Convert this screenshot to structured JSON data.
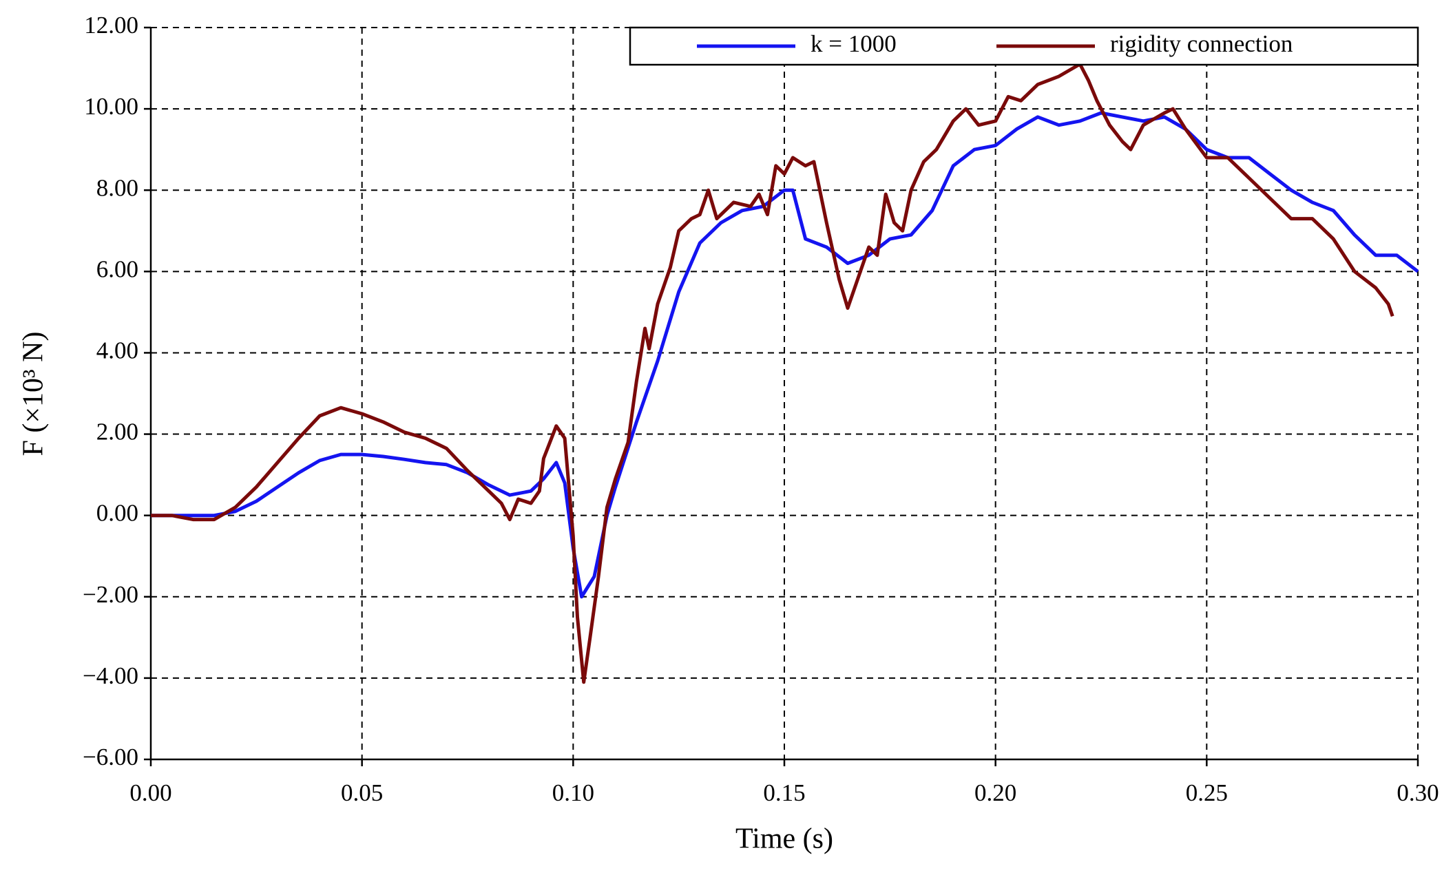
{
  "chart_data": {
    "type": "line",
    "x_label": "Time (s)",
    "y_label": "F (×10³ N)",
    "xlim": [
      0,
      0.3
    ],
    "ylim": [
      -6,
      12
    ],
    "xticks": [
      {
        "value": 0,
        "label": "0.00"
      },
      {
        "value": 0.05,
        "label": "0.05"
      },
      {
        "value": 0.1,
        "label": "0.10"
      },
      {
        "value": 0.15,
        "label": "0.15"
      },
      {
        "value": 0.2,
        "label": "0.20"
      },
      {
        "value": 0.25,
        "label": "0.25"
      },
      {
        "value": 0.3,
        "label": "0.30"
      }
    ],
    "yticks": [
      {
        "value": -6,
        "label": "−6.00"
      },
      {
        "value": -4,
        "label": "−4.00"
      },
      {
        "value": -2,
        "label": "−2.00"
      },
      {
        "value": 0,
        "label": "0.00"
      },
      {
        "value": 2,
        "label": "2.00"
      },
      {
        "value": 4,
        "label": "4.00"
      },
      {
        "value": 6,
        "label": "6.00"
      },
      {
        "value": 8,
        "label": "8.00"
      },
      {
        "value": 10,
        "label": "10.00"
      },
      {
        "value": 12,
        "label": "12.00"
      }
    ],
    "grid": true,
    "legend": "top-right",
    "series": [
      {
        "name": "k = 1000",
        "color": "#1414f0",
        "x": [
          0,
          0.005,
          0.01,
          0.015,
          0.02,
          0.025,
          0.03,
          0.035,
          0.04,
          0.045,
          0.05,
          0.055,
          0.06,
          0.065,
          0.07,
          0.075,
          0.08,
          0.085,
          0.09,
          0.093,
          0.096,
          0.098,
          0.1,
          0.102,
          0.105,
          0.108,
          0.11,
          0.115,
          0.12,
          0.125,
          0.13,
          0.135,
          0.14,
          0.145,
          0.15,
          0.152,
          0.155,
          0.16,
          0.165,
          0.17,
          0.175,
          0.18,
          0.185,
          0.19,
          0.195,
          0.2,
          0.205,
          0.21,
          0.215,
          0.22,
          0.225,
          0.23,
          0.235,
          0.24,
          0.245,
          0.25,
          0.255,
          0.26,
          0.265,
          0.27,
          0.275,
          0.28,
          0.285,
          0.29,
          0.295,
          0.3
        ],
        "values": [
          0,
          0,
          0,
          0,
          0.1,
          0.35,
          0.7,
          1.05,
          1.35,
          1.5,
          1.5,
          1.45,
          1.38,
          1.3,
          1.25,
          1.05,
          0.75,
          0.5,
          0.6,
          0.9,
          1.3,
          0.8,
          -0.8,
          -2.0,
          -1.5,
          0,
          0.7,
          2.3,
          3.8,
          5.5,
          6.7,
          7.2,
          7.5,
          7.6,
          8.0,
          8.0,
          6.8,
          6.6,
          6.2,
          6.4,
          6.8,
          6.9,
          7.5,
          8.6,
          9.0,
          9.1,
          9.5,
          9.8,
          9.6,
          9.7,
          9.9,
          9.8,
          9.7,
          9.8,
          9.5,
          9.0,
          8.8,
          8.8,
          8.4,
          8.0,
          7.7,
          7.5,
          6.9,
          6.4,
          6.4,
          6.0
        ]
      },
      {
        "name": "rigidity connection",
        "color": "#7a0a0a",
        "x": [
          0,
          0.005,
          0.01,
          0.015,
          0.02,
          0.025,
          0.03,
          0.035,
          0.04,
          0.045,
          0.05,
          0.055,
          0.06,
          0.065,
          0.07,
          0.075,
          0.08,
          0.083,
          0.085,
          0.087,
          0.09,
          0.092,
          0.093,
          0.096,
          0.098,
          0.1,
          0.101,
          0.1025,
          0.104,
          0.106,
          0.108,
          0.11,
          0.113,
          0.115,
          0.117,
          0.118,
          0.12,
          0.123,
          0.125,
          0.128,
          0.13,
          0.132,
          0.134,
          0.138,
          0.142,
          0.144,
          0.146,
          0.148,
          0.15,
          0.152,
          0.155,
          0.157,
          0.16,
          0.163,
          0.165,
          0.168,
          0.17,
          0.172,
          0.174,
          0.176,
          0.178,
          0.18,
          0.183,
          0.186,
          0.19,
          0.193,
          0.196,
          0.2,
          0.203,
          0.206,
          0.21,
          0.215,
          0.22,
          0.222,
          0.224,
          0.227,
          0.23,
          0.232,
          0.235,
          0.24,
          0.242,
          0.245,
          0.25,
          0.255,
          0.26,
          0.265,
          0.27,
          0.275,
          0.28,
          0.285,
          0.29,
          0.293,
          0.294
        ],
        "values": [
          0,
          0,
          -0.1,
          -0.1,
          0.2,
          0.7,
          1.3,
          1.9,
          2.45,
          2.65,
          2.5,
          2.3,
          2.05,
          1.9,
          1.65,
          1.1,
          0.6,
          0.3,
          -0.1,
          0.4,
          0.3,
          0.6,
          1.4,
          2.2,
          1.9,
          -0.5,
          -2.5,
          -4.1,
          -3.0,
          -1.5,
          0.2,
          0.9,
          1.8,
          3.3,
          4.6,
          4.1,
          5.2,
          6.1,
          7.0,
          7.3,
          7.4,
          8.0,
          7.3,
          7.7,
          7.6,
          7.9,
          7.4,
          8.6,
          8.4,
          8.8,
          8.6,
          8.7,
          7.2,
          5.8,
          5.1,
          6.0,
          6.6,
          6.4,
          7.9,
          7.2,
          7.0,
          8.0,
          8.7,
          9.0,
          9.7,
          10.0,
          9.6,
          9.7,
          10.3,
          10.2,
          10.6,
          10.8,
          11.1,
          10.7,
          10.2,
          9.6,
          9.2,
          9.0,
          9.6,
          9.9,
          10.0,
          9.5,
          8.8,
          8.8,
          8.3,
          7.8,
          7.3,
          7.3,
          6.8,
          6.0,
          5.6,
          5.2,
          4.9
        ]
      }
    ]
  }
}
